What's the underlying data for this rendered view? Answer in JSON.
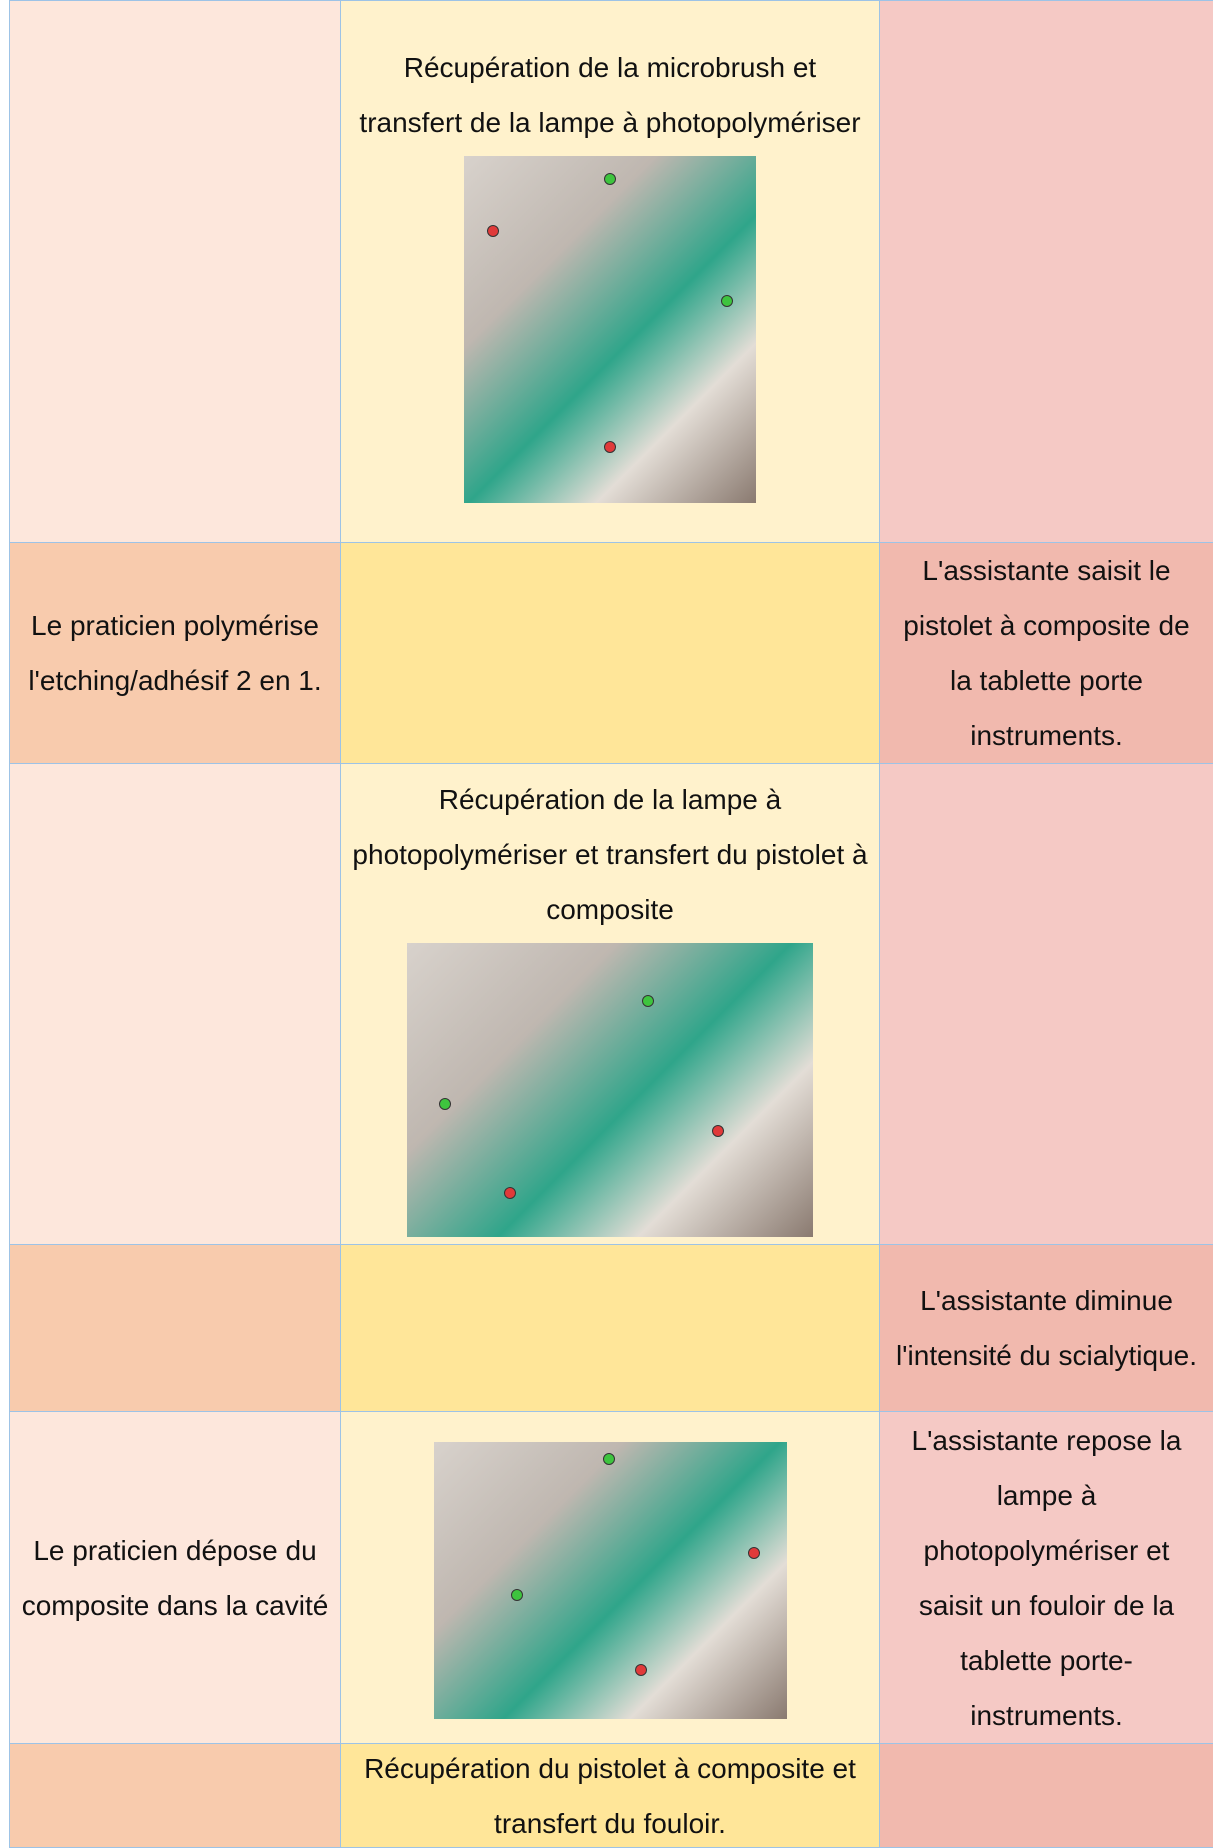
{
  "table": {
    "rows": [
      {
        "transfer": "Récupération de la microbrush et transfert de la lampe à photopolymériser"
      },
      {
        "practitioner": "Le praticien polymérise l'etching/adhésif 2 en 1.",
        "assistant": "L'assistante saisit le pistolet à composite de la tablette porte instruments."
      },
      {
        "transfer": "Récupération de la lampe à photopolymériser et transfert du pistolet à composite"
      },
      {
        "assistant": "L'assistante diminue l'intensité du scialytique."
      },
      {
        "practitioner": "Le praticien dépose du composite dans la cavité",
        "assistant": "L'assistante repose la lampe à photopolymériser et saisit un fouloir de la tablette porte-instruments."
      },
      {
        "transfer": "Récupération du pistolet à composite et transfert du fouloir."
      }
    ]
  }
}
